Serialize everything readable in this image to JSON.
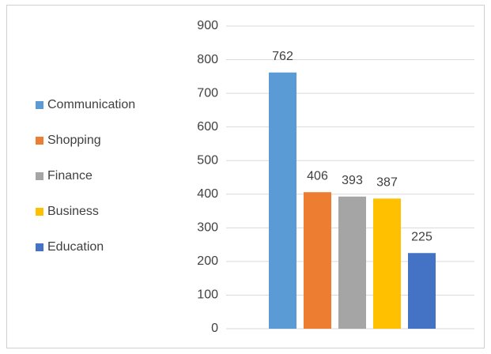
{
  "chart_data": {
    "type": "bar",
    "series": [
      {
        "name": "Communication",
        "color": "#5b9bd5",
        "values": [
          762
        ]
      },
      {
        "name": "Shopping",
        "color": "#ed7d31",
        "values": [
          406
        ]
      },
      {
        "name": "Finance",
        "color": "#a5a5a5",
        "values": [
          393
        ]
      },
      {
        "name": "Business",
        "color": "#ffc000",
        "values": [
          387
        ]
      },
      {
        "name": "Education",
        "color": "#4472c4",
        "values": [
          225
        ]
      }
    ],
    "ylim": [
      0,
      900
    ],
    "yticks": [
      0,
      100,
      200,
      300,
      400,
      500,
      600,
      700,
      800,
      900
    ],
    "grid": true,
    "legend": "left"
  }
}
